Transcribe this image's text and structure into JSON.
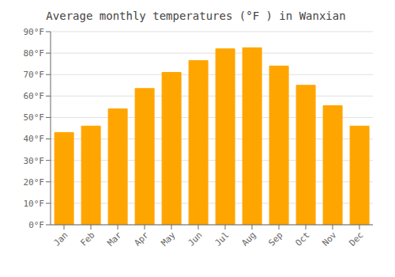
{
  "chart_data": {
    "type": "bar",
    "title": "Average monthly temperatures (°F ) in Wanxian",
    "categories": [
      "Jan",
      "Feb",
      "Mar",
      "Apr",
      "May",
      "Jun",
      "Jul",
      "Aug",
      "Sep",
      "Oct",
      "Nov",
      "Dec"
    ],
    "values": [
      43,
      46,
      54,
      63.5,
      71,
      76.5,
      82,
      82.5,
      74,
      65,
      55.5,
      46
    ],
    "color": "#FFA500",
    "ylim": [
      0,
      90
    ],
    "yticks": [
      {
        "value": 0,
        "label": "0°F"
      },
      {
        "value": 10,
        "label": "10°F"
      },
      {
        "value": 20,
        "label": "20°F"
      },
      {
        "value": 30,
        "label": "30°F"
      },
      {
        "value": 40,
        "label": "40°F"
      },
      {
        "value": 50,
        "label": "50°F"
      },
      {
        "value": 60,
        "label": "60°F"
      },
      {
        "value": 70,
        "label": "70°F"
      },
      {
        "value": 80,
        "label": "80°F"
      },
      {
        "value": 90,
        "label": "90°F"
      }
    ],
    "grid": true
  }
}
